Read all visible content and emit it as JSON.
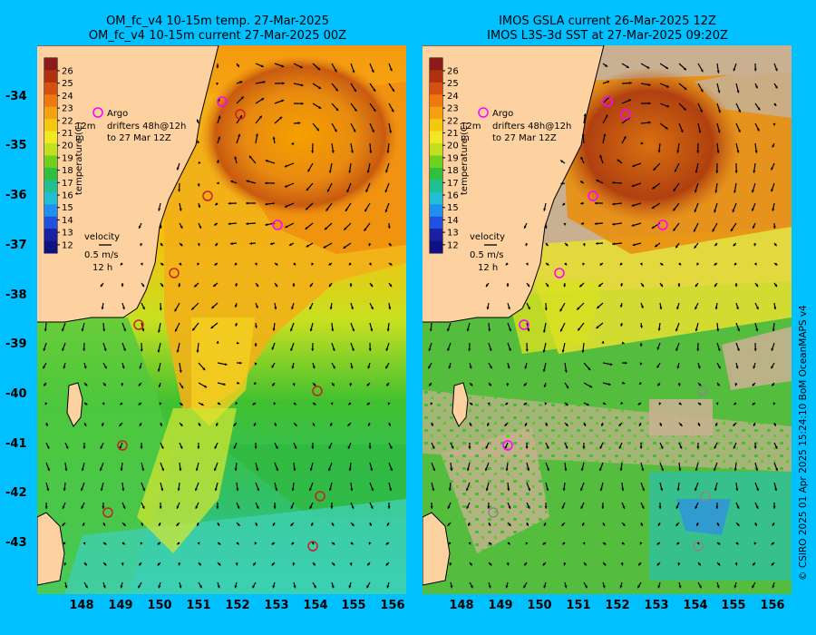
{
  "left": {
    "title_line1": "OM_fc_v4  10-15m temp. 27-Mar-2025",
    "title_line2": "OM_fc_v4  10-15m current 27-Mar-2025 00Z"
  },
  "right": {
    "title_line1": "IMOS GSLA current 26-Mar-2025 12Z",
    "title_line2": "IMOS L3S-3d SST at 27-Mar-2025 09:20Z"
  },
  "colorbar": {
    "ticks": [
      "26",
      "25",
      "24",
      "23",
      "22",
      "21",
      "20",
      "19",
      "18",
      "17",
      "16",
      "15",
      "14",
      "13",
      "12"
    ],
    "label": "temperature (C)"
  },
  "legend": {
    "argo": "Argo",
    "drifter_line1": "drifters 48h@12h",
    "drifter_line2": "to 27 Mar 12Z",
    "side_12m": "12m",
    "side_m": "m",
    "velocity": "velocity",
    "speed": "0.5 m/s",
    "hours": "12 h"
  },
  "axes": {
    "lat_ticks": [
      "-34",
      "-35",
      "-36",
      "-37",
      "-38",
      "-39",
      "-40",
      "-41",
      "-42",
      "-43"
    ],
    "lon_ticks": [
      "148",
      "149",
      "150",
      "151",
      "152",
      "153",
      "154",
      "155",
      "156"
    ]
  },
  "credit": "© CSIRO 2025   01 Apr 2025 15:24:10 BoM OceanMAPS v4",
  "colors": {
    "land": "#fdd2a0",
    "missing": "#c8b090",
    "background": "#00c0ff",
    "argo": "#ff00ff",
    "drifter": "#cc2020"
  }
}
